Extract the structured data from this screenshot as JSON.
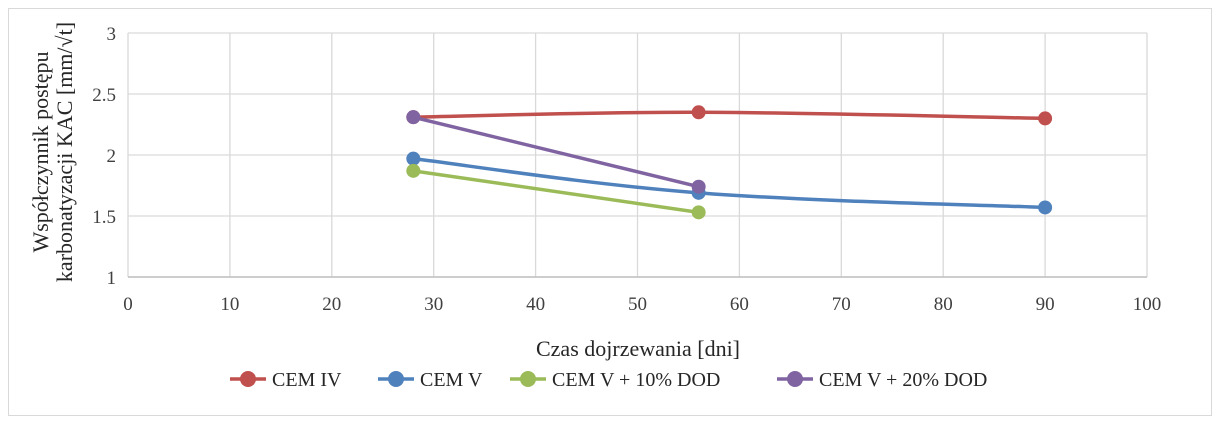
{
  "chart_data": {
    "type": "line",
    "title": "",
    "xlabel": "Czas dojrzewania [dni]",
    "ylabel_lines": [
      "Współczynnik postępu",
      "karbonatyzacji KAC [mm/√t]"
    ],
    "xlim": [
      0,
      100
    ],
    "ylim": [
      1,
      3
    ],
    "x_ticks": [
      0,
      10,
      20,
      30,
      40,
      50,
      60,
      70,
      80,
      90,
      100
    ],
    "y_ticks": [
      1,
      1.5,
      2,
      2.5,
      3
    ],
    "y_tick_labels": [
      "1",
      "1.5",
      "2",
      "2.5",
      "3"
    ],
    "grid": true,
    "legend_position": "bottom",
    "series": [
      {
        "name": "CEM IV",
        "color": "#c0504d",
        "x": [
          28,
          56,
          90
        ],
        "y": [
          2.31,
          2.35,
          2.3
        ]
      },
      {
        "name": "CEM V",
        "color": "#4f81bd",
        "x": [
          28,
          56,
          90
        ],
        "y": [
          1.97,
          1.69,
          1.57
        ]
      },
      {
        "name": "CEM V + 10% DOD",
        "color": "#9bbb59",
        "x": [
          28,
          56
        ],
        "y": [
          1.87,
          1.53
        ]
      },
      {
        "name": "CEM V + 20% DOD",
        "color": "#8064a2",
        "x": [
          28,
          56
        ],
        "y": [
          2.31,
          1.74
        ]
      }
    ]
  }
}
